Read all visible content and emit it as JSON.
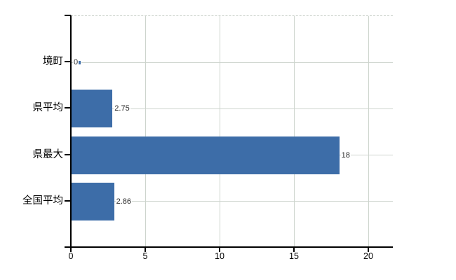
{
  "chart_data": {
    "type": "bar",
    "orientation": "horizontal",
    "title": "",
    "xlabel": "",
    "ylabel": "",
    "categories": [
      "境町",
      "県平均",
      "県最大",
      "全国平均"
    ],
    "values": [
      0,
      2.75,
      18,
      2.86
    ],
    "value_labels": [
      "0",
      "2.75",
      "18",
      "2.86"
    ],
    "x_ticks": [
      0,
      5,
      10,
      15,
      20
    ],
    "xlim": [
      0,
      21.65
    ],
    "grid": true,
    "legend": false,
    "colors": {
      "bar": "#3d6da8",
      "grid": "#cdd4cd",
      "axis": "#000000",
      "value_label": "#2b2b2b",
      "tick_label": "#000000",
      "background": "#ffffff"
    }
  }
}
